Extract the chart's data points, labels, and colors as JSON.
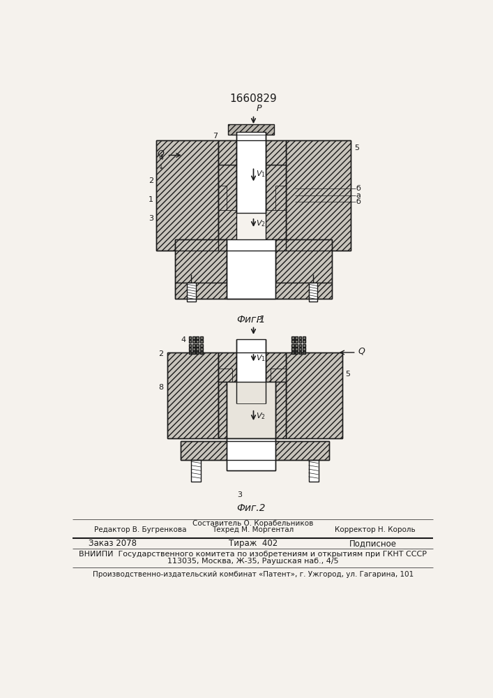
{
  "title": "1660829",
  "fig1_label": "Фиг.1",
  "fig2_label": "Фиг.2",
  "footer_editor": "Редактор В. Бугренкова",
  "footer_author": "Составитель О. Корабельников",
  "footer_tech": "Техред М. Моргентал",
  "footer_corrector": "Корректор Н. Король",
  "footer_order": "Заказ 2078",
  "footer_print": "Тираж  402",
  "footer_sub": "Подписное",
  "footer_vniip": "ВНИИПИ  Государственного комитета по изобретениям и открытиям при ГКНТ СССР",
  "footer_addr": "113035, Москва, Ж-35, Раушская наб., 4/5",
  "footer_patent": "Производственно-издательский комбинат «Патент», г. Ужгород, ул. Гагарина, 101",
  "bg_color": "#f5f2ed",
  "hatch_bg": "#c8c4bc",
  "line_color": "#1a1a1a"
}
